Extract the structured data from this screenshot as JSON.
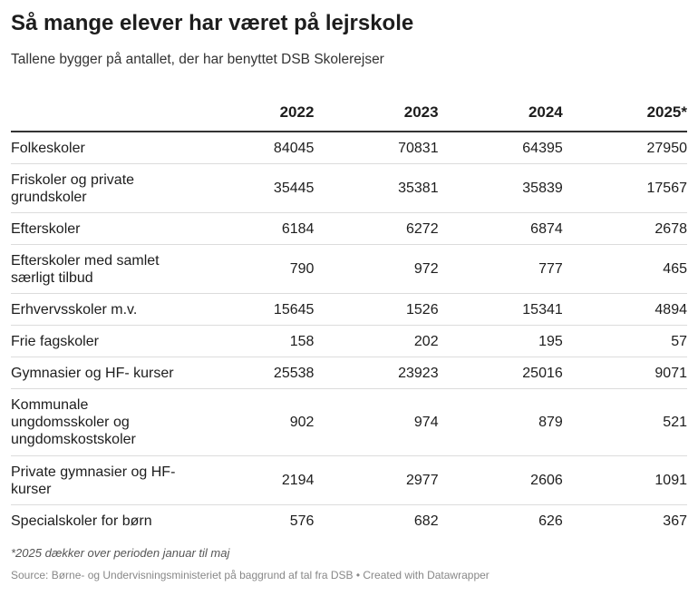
{
  "title": "Så mange elever har været på lejrskole",
  "subtitle": "Tallene bygger på antallet, der har benyttet DSB Skolerejser",
  "note": "*2025 dækker over perioden januar til maj",
  "source": "Source: Børne- og Undervisningsministeriet på baggrund af tal fra DSB • Created with Datawrapper",
  "chart_data": {
    "type": "table",
    "title": "Så mange elever har været på lejrskole",
    "subtitle": "Tallene bygger på antallet, der har benyttet DSB Skolerejser",
    "columns": [
      "",
      "2022",
      "2023",
      "2024",
      "2025*"
    ],
    "rows": [
      {
        "label": "Folkeskoler",
        "values": [
          "84045",
          "70831",
          "64395",
          "27950"
        ]
      },
      {
        "label": "Friskoler og private grundskoler",
        "values": [
          "35445",
          "35381",
          "35839",
          "17567"
        ]
      },
      {
        "label": "Efterskoler",
        "values": [
          "6184",
          "6272",
          "6874",
          "2678"
        ]
      },
      {
        "label": "Efterskoler med samlet særligt tilbud",
        "values": [
          "790",
          "972",
          "777",
          "465"
        ]
      },
      {
        "label": "Erhvervsskoler m.v.",
        "values": [
          "15645",
          "1526",
          "15341",
          "4894"
        ]
      },
      {
        "label": "Frie fagskoler",
        "values": [
          "158",
          "202",
          "195",
          "57"
        ]
      },
      {
        "label": "Gymnasier og HF- kurser",
        "values": [
          "25538",
          "23923",
          "25016",
          "9071"
        ]
      },
      {
        "label": "Kommunale ungdomsskoler og ungdomskostskoler",
        "values": [
          "902",
          "974",
          "879",
          "521"
        ]
      },
      {
        "label": "Private gymnasier og HF-kurser",
        "values": [
          "2194",
          "2977",
          "2606",
          "1091"
        ]
      },
      {
        "label": "Specialskoler for børn",
        "values": [
          "576",
          "682",
          "626",
          "367"
        ]
      }
    ]
  }
}
